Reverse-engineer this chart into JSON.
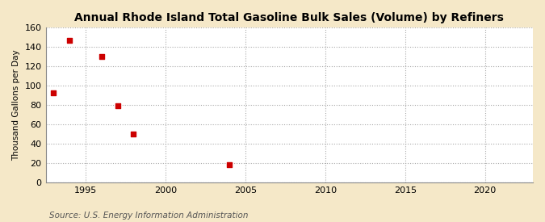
{
  "title": "Annual Rhode Island Total Gasoline Bulk Sales (Volume) by Refiners",
  "ylabel": "Thousand Gallons per Day",
  "source": "Source: U.S. Energy Information Administration",
  "x_data": [
    1993,
    1994,
    1996,
    1997,
    1998,
    2004
  ],
  "y_data": [
    93,
    147,
    130,
    79,
    50,
    18
  ],
  "xlim": [
    1992.5,
    2023
  ],
  "ylim": [
    0,
    160
  ],
  "yticks": [
    0,
    20,
    40,
    60,
    80,
    100,
    120,
    140,
    160
  ],
  "xticks": [
    1995,
    2000,
    2005,
    2010,
    2015,
    2020
  ],
  "marker_color": "#cc0000",
  "marker": "s",
  "marker_size": 4,
  "fig_background_color": "#f5e8c8",
  "plot_background_color": "#ffffff",
  "grid_color": "#aaaaaa",
  "title_fontsize": 10,
  "label_fontsize": 7.5,
  "tick_fontsize": 8,
  "source_fontsize": 7.5
}
